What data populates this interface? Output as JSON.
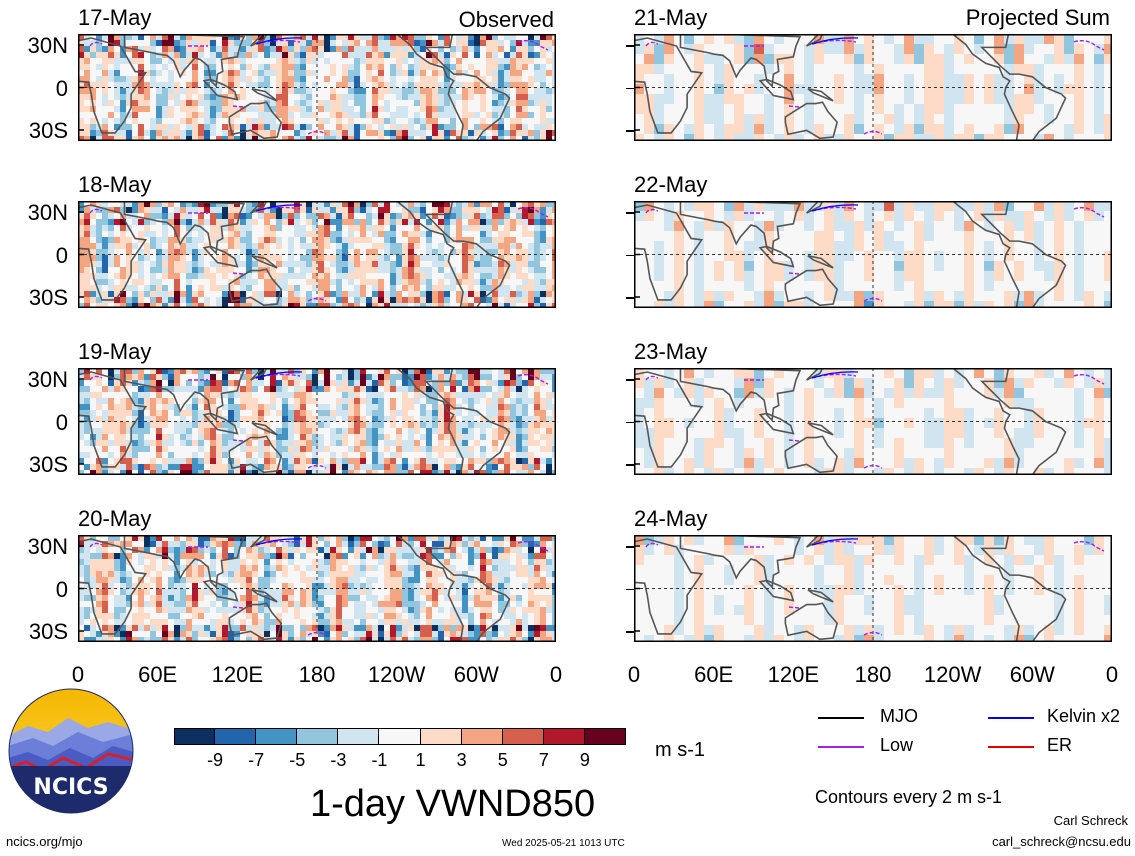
{
  "panels_left": {
    "column_label": "Observed",
    "dates": [
      "17-May",
      "18-May",
      "19-May",
      "20-May"
    ]
  },
  "panels_right": {
    "column_label": "Projected Sum",
    "dates": [
      "21-May",
      "22-May",
      "23-May",
      "24-May"
    ]
  },
  "axes": {
    "y_ticks": [
      "30N",
      "0",
      "30S"
    ],
    "x_ticks": [
      "0",
      "60E",
      "120E",
      "180",
      "120W",
      "60W",
      "0"
    ]
  },
  "colorbar": {
    "labels": [
      "-9",
      "-7",
      "-5",
      "-3",
      "-1",
      "1",
      "3",
      "5",
      "7",
      "9"
    ],
    "colors": [
      "#0b2f5e",
      "#2166ac",
      "#4393c3",
      "#92c5de",
      "#d1e5f0",
      "#f7f7f7",
      "#fddbc7",
      "#f4a582",
      "#d6604d",
      "#b2182b",
      "#67001f"
    ],
    "units": "m s-1"
  },
  "legend": {
    "items": [
      {
        "label": "MJO",
        "color": "#000000"
      },
      {
        "label": "Kelvin x2",
        "color": "#0000ff"
      },
      {
        "label": "Low",
        "color": "#a020f0"
      },
      {
        "label": "ER",
        "color": "#e00000"
      }
    ],
    "contours_note": "Contours every 2 m s-1"
  },
  "title": "1-day VWND850",
  "logo_text": "NCICS",
  "footer": {
    "url": "ncics.org/mjo",
    "timestamp": "Wed 2025-05-21 1013 UTC",
    "author": "Carl Schreck",
    "email": "carl_schreck@ncsu.edu"
  },
  "chart_data": {
    "type": "heatmap",
    "variable": "1-day VWND850",
    "units": "m s-1",
    "x_range": [
      "0",
      "0"
    ],
    "y_range": [
      "30S",
      "30N"
    ],
    "color_levels": [
      -9,
      -7,
      -5,
      -3,
      -1,
      1,
      3,
      5,
      7,
      9
    ],
    "left_column": "Observed",
    "right_column": "Projected Sum",
    "dates": [
      "17-May",
      "18-May",
      "19-May",
      "20-May",
      "21-May",
      "22-May",
      "23-May",
      "24-May"
    ]
  }
}
